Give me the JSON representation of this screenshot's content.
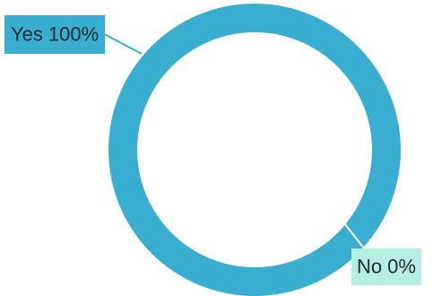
{
  "chart_data": {
    "type": "donut",
    "categories": [
      "Yes",
      "No"
    ],
    "values": [
      100,
      0
    ],
    "value_labels": [
      "100%",
      "0%"
    ],
    "colors": [
      "#3aaed0",
      "#b6efe1"
    ]
  }
}
